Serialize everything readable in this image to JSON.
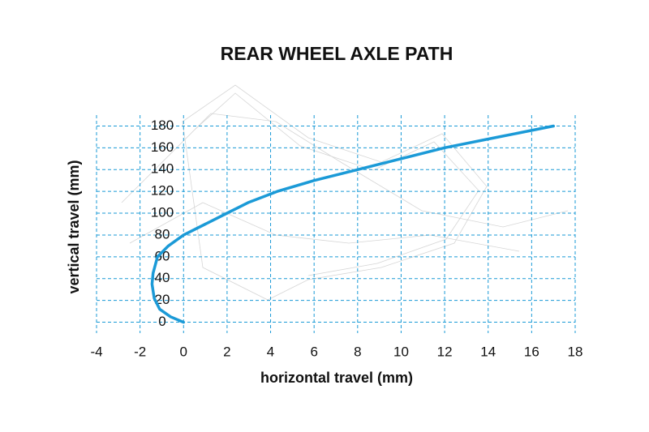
{
  "chart_data": {
    "type": "line",
    "title": "REAR WHEEL AXLE PATH",
    "x_label": "horizontal travel (mm)",
    "y_label": "vertical travel (mm)",
    "x": [
      0,
      -0.6,
      -1.1,
      -1.35,
      -1.45,
      -1.4,
      -1.2,
      -0.7,
      0,
      1,
      2,
      3,
      4.3,
      6,
      8,
      10,
      12,
      14.5,
      17
    ],
    "values": [
      0,
      5,
      12,
      22,
      35,
      45,
      60,
      70,
      80,
      90,
      100,
      110,
      120,
      130,
      140,
      150,
      160,
      170,
      180
    ],
    "color": "#1b9ad7",
    "xlim": [
      -4,
      18
    ],
    "xticks": [
      -4,
      -2,
      0,
      2,
      4,
      6,
      8,
      10,
      12,
      14,
      16,
      18
    ],
    "ylim": [
      -10,
      190
    ],
    "yticks": [
      0,
      20,
      40,
      60,
      80,
      100,
      120,
      140,
      160,
      180
    ],
    "grid": true
  }
}
